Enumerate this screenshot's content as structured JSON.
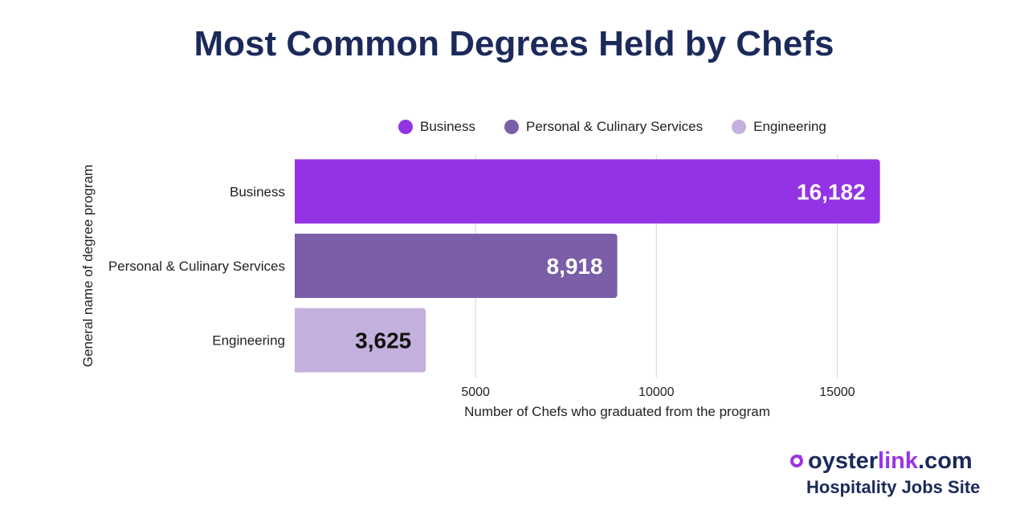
{
  "chart_data": {
    "type": "bar",
    "orientation": "horizontal",
    "title": "Most Common Degrees Held by Chefs",
    "categories": [
      "Business",
      "Personal & Culinary Services",
      "Engineering"
    ],
    "values": [
      16182,
      8918,
      3625
    ],
    "value_labels": [
      "16,182",
      "8,918",
      "3,625"
    ],
    "colors": [
      "#9333e5",
      "#7a5ea8",
      "#c4b0dc"
    ],
    "label_colors": [
      "#ffffff",
      "#ffffff",
      "#111111"
    ],
    "xlabel": "Number of Chefs who graduated from the program",
    "ylabel": "General name of degree program",
    "xlim": [
      0,
      16500
    ],
    "xticks": [
      5000,
      10000,
      15000
    ],
    "xtick_labels": [
      "5000",
      "10000",
      "15000"
    ],
    "grid": true,
    "legend": {
      "position": "top",
      "entries": [
        "Business",
        "Personal & Culinary Services",
        "Engineering"
      ]
    }
  },
  "branding": {
    "logo_prefix": "oyster",
    "logo_accent": "link",
    "logo_suffix": ".com",
    "tagline": "Hospitality Jobs Site",
    "accent_color": "#9b34e6"
  }
}
